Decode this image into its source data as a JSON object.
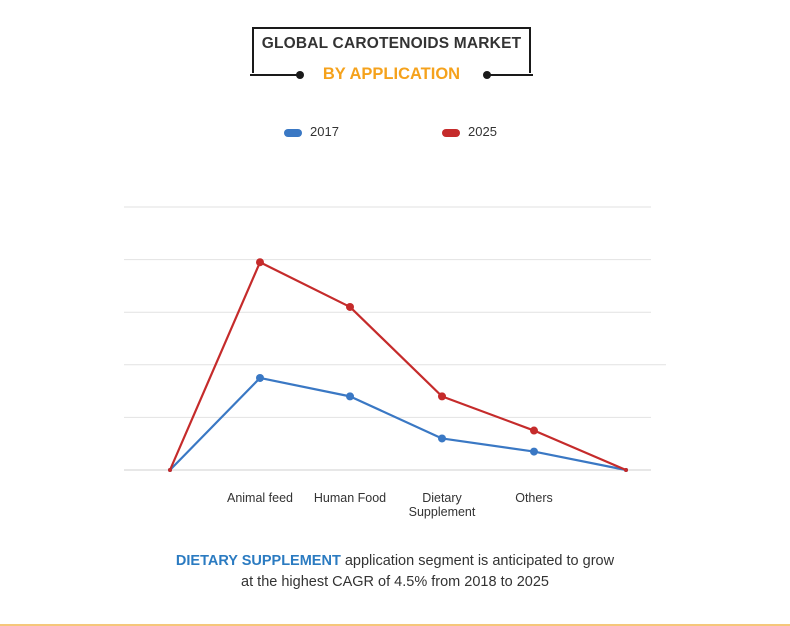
{
  "header": {
    "title": "GLOBAL CAROTENOIDS MARKET",
    "subtitle": "BY APPLICATION"
  },
  "colors": {
    "series_2017": "#3a78c4",
    "series_2025": "#c52b2b",
    "accent": "#f5a21c",
    "highlight": "#2b7bc1"
  },
  "chart_data": {
    "type": "line",
    "title": "GLOBAL CAROTENOIDS MARKET",
    "subtitle": "BY APPLICATION",
    "categories": [
      "",
      "Animal feed",
      "Human Food",
      "Dietary Supplement",
      "Others",
      ""
    ],
    "category_lines": [
      [
        ""
      ],
      [
        "Animal feed"
      ],
      [
        "Human Food"
      ],
      [
        "Dietary",
        "Supplement"
      ],
      [
        "Others"
      ],
      [
        ""
      ]
    ],
    "series": [
      {
        "name": "2017",
        "values": [
          0,
          1.75,
          1.4,
          0.6,
          0.35,
          0
        ]
      },
      {
        "name": "2025",
        "values": [
          0,
          3.95,
          3.1,
          1.4,
          0.75,
          0
        ]
      }
    ],
    "ylim": [
      0,
      5
    ],
    "grid": true,
    "legend": "top-center",
    "xlabel": "",
    "ylabel": ""
  },
  "caption": {
    "highlight": "DIETARY SUPPLEMENT",
    "line1_rest": " application segment is anticipated to grow",
    "line2": "at the highest CAGR of 4.5% from 2018 to 2025"
  }
}
